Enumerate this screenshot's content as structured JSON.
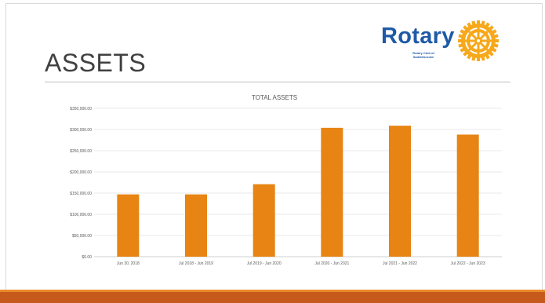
{
  "slide": {
    "title": "ASSETS",
    "logo_text": "Rotary",
    "logo_subtitle": "Rotary Club of Saddlebrooke"
  },
  "colors": {
    "bar": "#e78413",
    "title": "#404040",
    "logo_blue": "#1f5aa6",
    "logo_gold": "#f7a81b",
    "footer": "#c65a1c"
  },
  "chart_data": {
    "type": "bar",
    "title": "TOTAL ASSETS",
    "categories": [
      "Jun 30, 2018",
      "Jul 2018 - Jun 2019",
      "Jul 2019 - Jun 2020",
      "Jul 2020 - Jun 2021",
      "Jul 2021 - Jun 2022",
      "Jul 2022 - Jun 2023"
    ],
    "values": [
      147000,
      147000,
      171000,
      304000,
      309000,
      288000
    ],
    "ylim": [
      0,
      350000
    ],
    "yticks": [
      0,
      50000,
      100000,
      150000,
      200000,
      250000,
      300000,
      350000
    ],
    "ytick_labels": [
      "$0.00",
      "$50,000.00",
      "$100,000.00",
      "$150,000.00",
      "$200,000.00",
      "$250,000.00",
      "$300,000.00",
      "$350,000.00"
    ],
    "grid": true
  }
}
